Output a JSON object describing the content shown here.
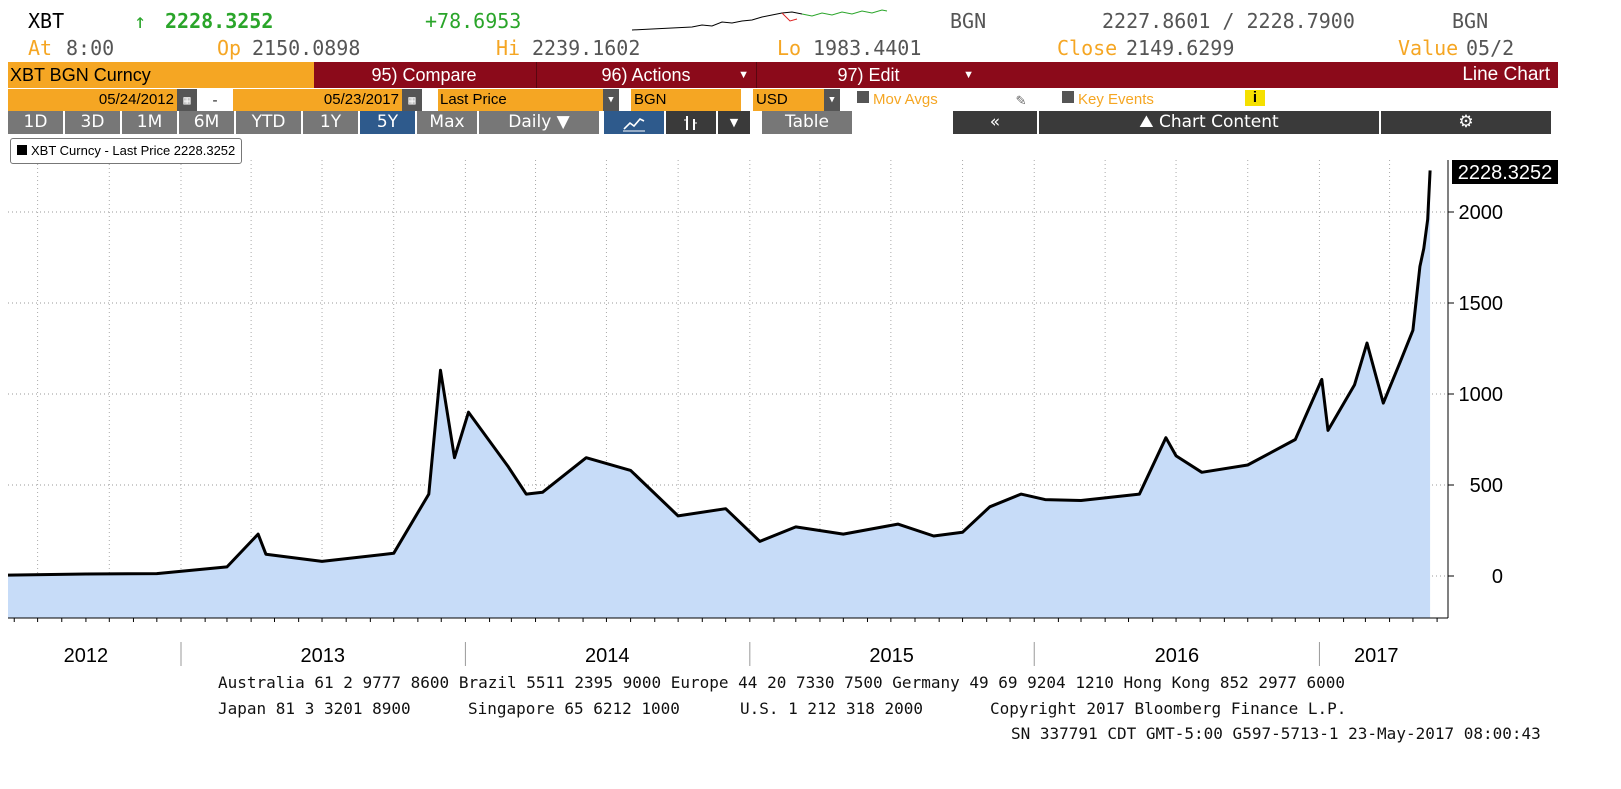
{
  "header": {
    "ticker": "XBT",
    "arrow": "↑",
    "last": "2228.3252",
    "change": "+78.6953",
    "source": "BGN",
    "bid_ask": "2227.8601 / 2228.7900",
    "source2": "BGN",
    "at_label": "At",
    "at_value": "8:00",
    "op_label": "Op",
    "op_value": "2150.0898",
    "hi_label": "Hi",
    "hi_value": "2239.1602",
    "lo_label": "Lo",
    "lo_value": "1983.4401",
    "close_label": "Close",
    "close_value": "2149.6299",
    "value_label": "Value",
    "value_value": "05/2"
  },
  "menubar": {
    "security": "XBT BGN Curncy",
    "compare": "95) Compare",
    "actions": "96) Actions",
    "edit": "97) Edit",
    "chart_type": "Line Chart"
  },
  "settings": {
    "start_date": "05/24/2012",
    "dash": "-",
    "end_date": "05/23/2017",
    "field": "Last Price",
    "source": "BGN",
    "currency": "USD",
    "mov_avgs": "Mov Avgs",
    "key_events": "Key Events",
    "info": "i"
  },
  "range_tabs": [
    "1D",
    "3D",
    "1M",
    "6M",
    "YTD",
    "1Y",
    "5Y",
    "Max"
  ],
  "periodicity": "Daily ▼",
  "table_label": "Table",
  "chart_content_label": "Chart Content",
  "collapse_label": "«",
  "gear": "⚙",
  "legend": "XBT Curncy - Last Price 2228.3252",
  "last_price_tag": "2228.3252",
  "colors": {
    "orange": "#f5a623",
    "menu_red": "#8b0a1a",
    "area_fill": "#c7dcf8",
    "line": "#000000",
    "up_green": "#2aa52a"
  },
  "chart_data": {
    "type": "area",
    "series": [
      {
        "name": "XBT Curncy - Last Price",
        "x": [
          "2012-05-24",
          "2012-09-01",
          "2012-12-01",
          "2013-03-01",
          "2013-04-10",
          "2013-04-20",
          "2013-07-01",
          "2013-10-01",
          "2013-11-15",
          "2013-11-30",
          "2013-12-18",
          "2014-01-05",
          "2014-02-25",
          "2014-03-20",
          "2014-04-10",
          "2014-06-05",
          "2014-08-01",
          "2014-10-01",
          "2014-12-01",
          "2015-01-14",
          "2015-03-01",
          "2015-05-01",
          "2015-07-10",
          "2015-08-25",
          "2015-10-01",
          "2015-11-05",
          "2015-12-15",
          "2016-01-15",
          "2016-03-01",
          "2016-05-15",
          "2016-06-18",
          "2016-07-01",
          "2016-08-03",
          "2016-10-01",
          "2016-12-01",
          "2017-01-04",
          "2017-01-12",
          "2017-02-15",
          "2017-03-03",
          "2017-03-24",
          "2017-04-15",
          "2017-05-01",
          "2017-05-10",
          "2017-05-15",
          "2017-05-20",
          "2017-05-23"
        ],
        "values": [
          5,
          11,
          13,
          50,
          230,
          120,
          80,
          125,
          450,
          1130,
          650,
          900,
          600,
          450,
          460,
          650,
          580,
          330,
          370,
          190,
          270,
          230,
          285,
          220,
          240,
          380,
          450,
          420,
          415,
          450,
          760,
          660,
          570,
          610,
          750,
          1080,
          800,
          1050,
          1280,
          950,
          1180,
          1350,
          1700,
          1800,
          1960,
          2228.3252
        ]
      }
    ],
    "x_ticks": [
      "2012",
      "2013",
      "2014",
      "2015",
      "2016",
      "2017"
    ],
    "y_ticks": [
      "0",
      "500",
      "1000",
      "1500",
      "2000"
    ],
    "ylim": [
      -220,
      2330
    ],
    "grid": true,
    "legend_position": "top-left"
  },
  "footer": {
    "line1": "Australia 61 2 9777 8600 Brazil 5511 2395 9000 Europe 44 20 7330 7500 Germany 49 69 9204 1210 Hong Kong 852 2977 6000",
    "line2_japan": "Japan 81 3 3201 8900",
    "line2_singapore": "Singapore 65 6212 1000",
    "line2_us": "U.S. 1 212 318 2000",
    "line2_copyright": "Copyright 2017 Bloomberg Finance L.P.",
    "line3": "SN 337791 CDT  GMT-5:00 G597-5713-1 23-May-2017 08:00:43"
  }
}
